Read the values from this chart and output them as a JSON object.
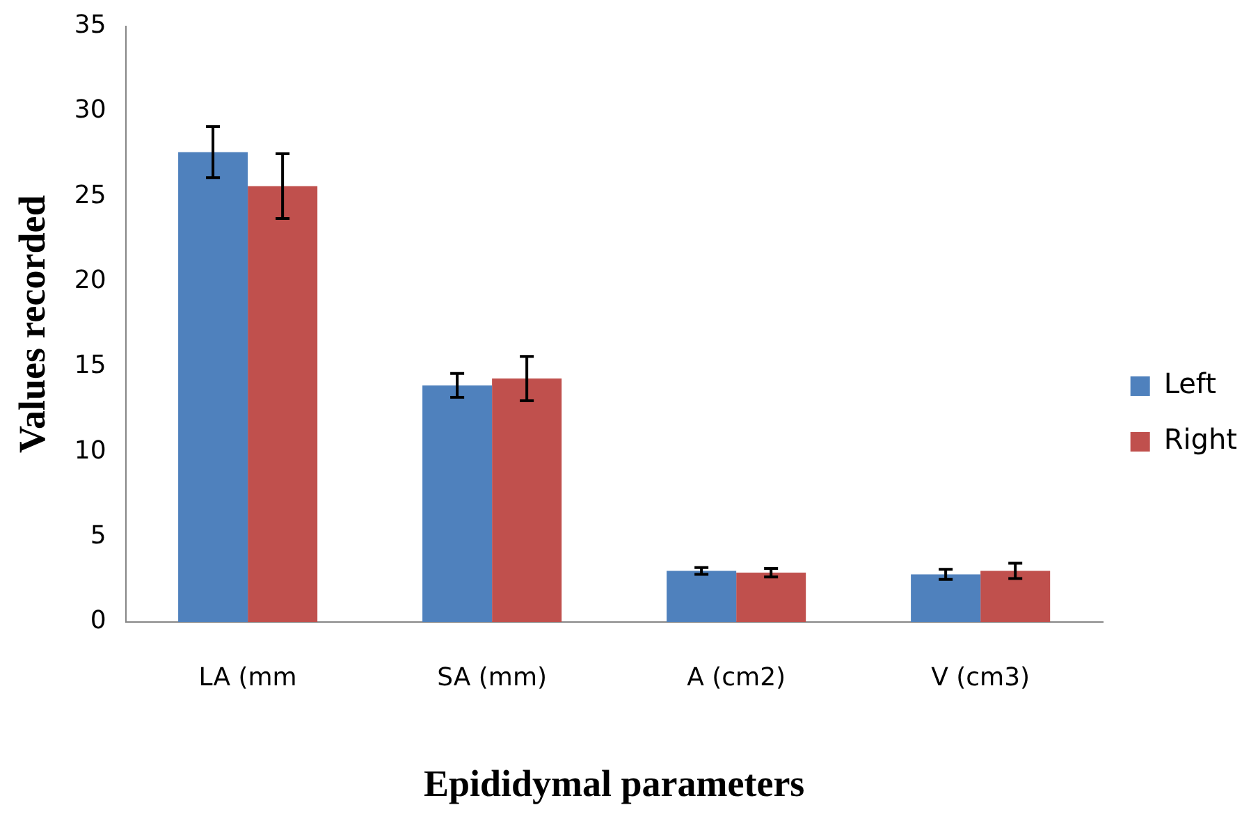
{
  "chart_data": {
    "type": "bar",
    "xlabel": "Epididymal parameters",
    "ylabel": "Values recorded",
    "categories": [
      "LA (mm",
      "SA (mm)",
      "A (cm2)",
      "V (cm3)"
    ],
    "series": [
      {
        "name": "Left",
        "color": "#4f81bd",
        "values": [
          27.6,
          13.9,
          3.0,
          2.8
        ],
        "errors": [
          1.5,
          0.7,
          0.2,
          0.3
        ]
      },
      {
        "name": "Right",
        "color": "#c0504d",
        "values": [
          25.6,
          14.3,
          2.9,
          3.0
        ],
        "errors": [
          1.9,
          1.3,
          0.25,
          0.45
        ]
      }
    ],
    "ylim": [
      0,
      35
    ],
    "yticks": [
      0,
      5,
      10,
      15,
      20,
      25,
      30,
      35
    ],
    "grid": false,
    "legend": "right"
  }
}
